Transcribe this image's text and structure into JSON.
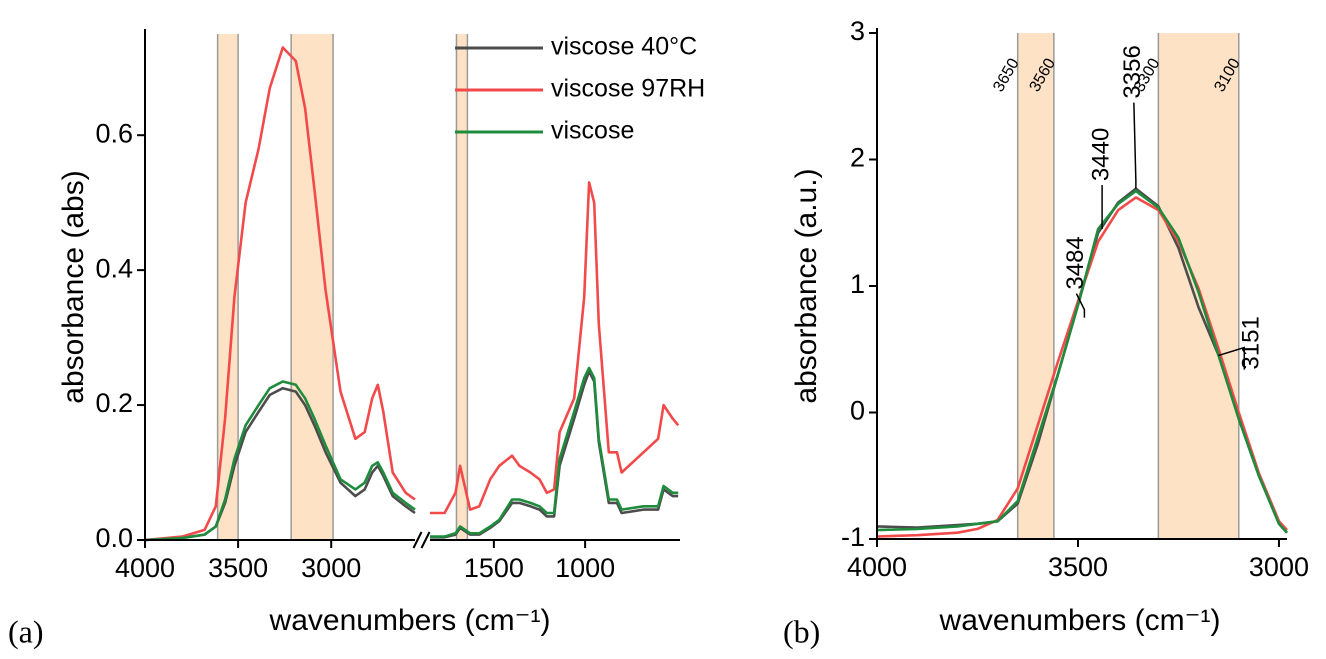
{
  "chart_data": [
    {
      "type": "line",
      "panel": "(a)",
      "y_label": "absorbance (abs)",
      "x_label": "wavenumbers (cm⁻¹)",
      "xlims": [
        [
          4000,
          2550
        ],
        [
          1850,
          480
        ]
      ],
      "xticks": [
        4000,
        3500,
        3000,
        1500,
        1000
      ],
      "ylim": [
        0,
        0.75
      ],
      "yticks": [
        {
          "value": 0,
          "label": "0.0"
        },
        0.2,
        0.4,
        0.6
      ],
      "bands": [
        [
          3610,
          3500
        ],
        [
          3215,
          2990
        ],
        [
          1705,
          1645
        ]
      ],
      "grid": false,
      "legend": "upper right",
      "x": [
        4000,
        3800,
        3680,
        3620,
        3570,
        3520,
        3460,
        3390,
        3330,
        3260,
        3190,
        3140,
        3090,
        3030,
        2950,
        2870,
        2820,
        2780,
        2750,
        2720,
        2670,
        2600,
        2550,
        1850,
        1770,
        1710,
        1685,
        1630,
        1580,
        1520,
        1470,
        1400,
        1360,
        1300,
        1250,
        1210,
        1170,
        1140,
        1060,
        1005,
        978,
        950,
        925,
        870,
        825,
        800,
        680,
        600,
        570,
        520,
        490
      ],
      "series": [
        {
          "name": "viscose 40°C",
          "color": "#4d4d4d",
          "values": [
            0,
            0.003,
            0.008,
            0.02,
            0.055,
            0.11,
            0.16,
            0.19,
            0.215,
            0.225,
            0.22,
            0.2,
            0.17,
            0.13,
            0.085,
            0.065,
            0.075,
            0.1,
            0.11,
            0.095,
            0.065,
            0.05,
            0.04,
            0.004,
            0.004,
            0.008,
            0.018,
            0.008,
            0.008,
            0.018,
            0.028,
            0.055,
            0.055,
            0.05,
            0.045,
            0.035,
            0.035,
            0.11,
            0.18,
            0.23,
            0.25,
            0.235,
            0.145,
            0.055,
            0.055,
            0.04,
            0.045,
            0.045,
            0.075,
            0.065,
            0.065
          ]
        },
        {
          "name": "viscose 97RH",
          "color": "#f24a4a",
          "values": [
            0,
            0.005,
            0.015,
            0.05,
            0.18,
            0.36,
            0.5,
            0.58,
            0.67,
            0.73,
            0.71,
            0.64,
            0.52,
            0.37,
            0.22,
            0.15,
            0.16,
            0.21,
            0.23,
            0.19,
            0.1,
            0.07,
            0.06,
            0.04,
            0.04,
            0.07,
            0.11,
            0.045,
            0.05,
            0.09,
            0.11,
            0.125,
            0.11,
            0.1,
            0.09,
            0.07,
            0.075,
            0.16,
            0.21,
            0.36,
            0.53,
            0.5,
            0.32,
            0.13,
            0.13,
            0.1,
            0.13,
            0.15,
            0.2,
            0.18,
            0.17
          ]
        },
        {
          "name": "viscose",
          "color": "#1e8c3c",
          "values": [
            0,
            0.003,
            0.008,
            0.02,
            0.06,
            0.12,
            0.17,
            0.2,
            0.225,
            0.235,
            0.23,
            0.21,
            0.18,
            0.14,
            0.09,
            0.075,
            0.085,
            0.11,
            0.115,
            0.1,
            0.07,
            0.055,
            0.045,
            0.005,
            0.005,
            0.01,
            0.02,
            0.01,
            0.01,
            0.02,
            0.03,
            0.06,
            0.06,
            0.055,
            0.05,
            0.04,
            0.04,
            0.12,
            0.19,
            0.24,
            0.255,
            0.24,
            0.15,
            0.06,
            0.06,
            0.045,
            0.05,
            0.05,
            0.08,
            0.07,
            0.07
          ]
        }
      ]
    },
    {
      "type": "line",
      "panel": "(b)",
      "y_label": "absorbance (a.u.)",
      "x_label": "wavenumbers (cm⁻¹)",
      "xlim": [
        4000,
        2980
      ],
      "xticks": [
        4000,
        3500,
        3000
      ],
      "ylim": [
        -1,
        3
      ],
      "yticks": [
        -1,
        0,
        1,
        2,
        3
      ],
      "bands": [
        [
          3650,
          3560
        ],
        [
          3300,
          3100
        ]
      ],
      "top_ticks": [
        3650,
        3560,
        3300,
        3100
      ],
      "grid": false,
      "annotations": [
        {
          "text": "3484",
          "x": 3484,
          "y": 0.75
        },
        {
          "text": "3440",
          "x": 3440,
          "y": 1.45
        },
        {
          "text": "3356",
          "x": 3356,
          "y": 1.77
        },
        {
          "text": "3151",
          "x": 3151,
          "y": 0.45
        }
      ],
      "x": [
        4000,
        3900,
        3800,
        3750,
        3700,
        3650,
        3600,
        3550,
        3500,
        3450,
        3400,
        3356,
        3300,
        3250,
        3200,
        3150,
        3100,
        3050,
        3000,
        2980
      ],
      "series": [
        {
          "name": "viscose 40°C",
          "color": "#4d4d4d",
          "values": [
            -0.9,
            -0.91,
            -0.89,
            -0.88,
            -0.86,
            -0.72,
            -0.25,
            0.3,
            0.85,
            1.42,
            1.66,
            1.77,
            1.63,
            1.3,
            0.83,
            0.45,
            -0.05,
            -0.5,
            -0.88,
            -0.95
          ]
        },
        {
          "name": "viscose 97RH",
          "color": "#f24a4a",
          "values": [
            -0.98,
            -0.97,
            -0.95,
            -0.92,
            -0.85,
            -0.6,
            -0.1,
            0.4,
            0.88,
            1.35,
            1.6,
            1.7,
            1.6,
            1.35,
            0.98,
            0.5,
            0.0,
            -0.48,
            -0.86,
            -0.93
          ]
        },
        {
          "name": "viscose",
          "color": "#1e8c3c",
          "values": [
            -0.93,
            -0.92,
            -0.9,
            -0.88,
            -0.86,
            -0.7,
            -0.2,
            0.3,
            0.85,
            1.45,
            1.65,
            1.75,
            1.62,
            1.38,
            0.95,
            0.45,
            -0.05,
            -0.5,
            -0.88,
            -0.95
          ]
        }
      ]
    }
  ]
}
